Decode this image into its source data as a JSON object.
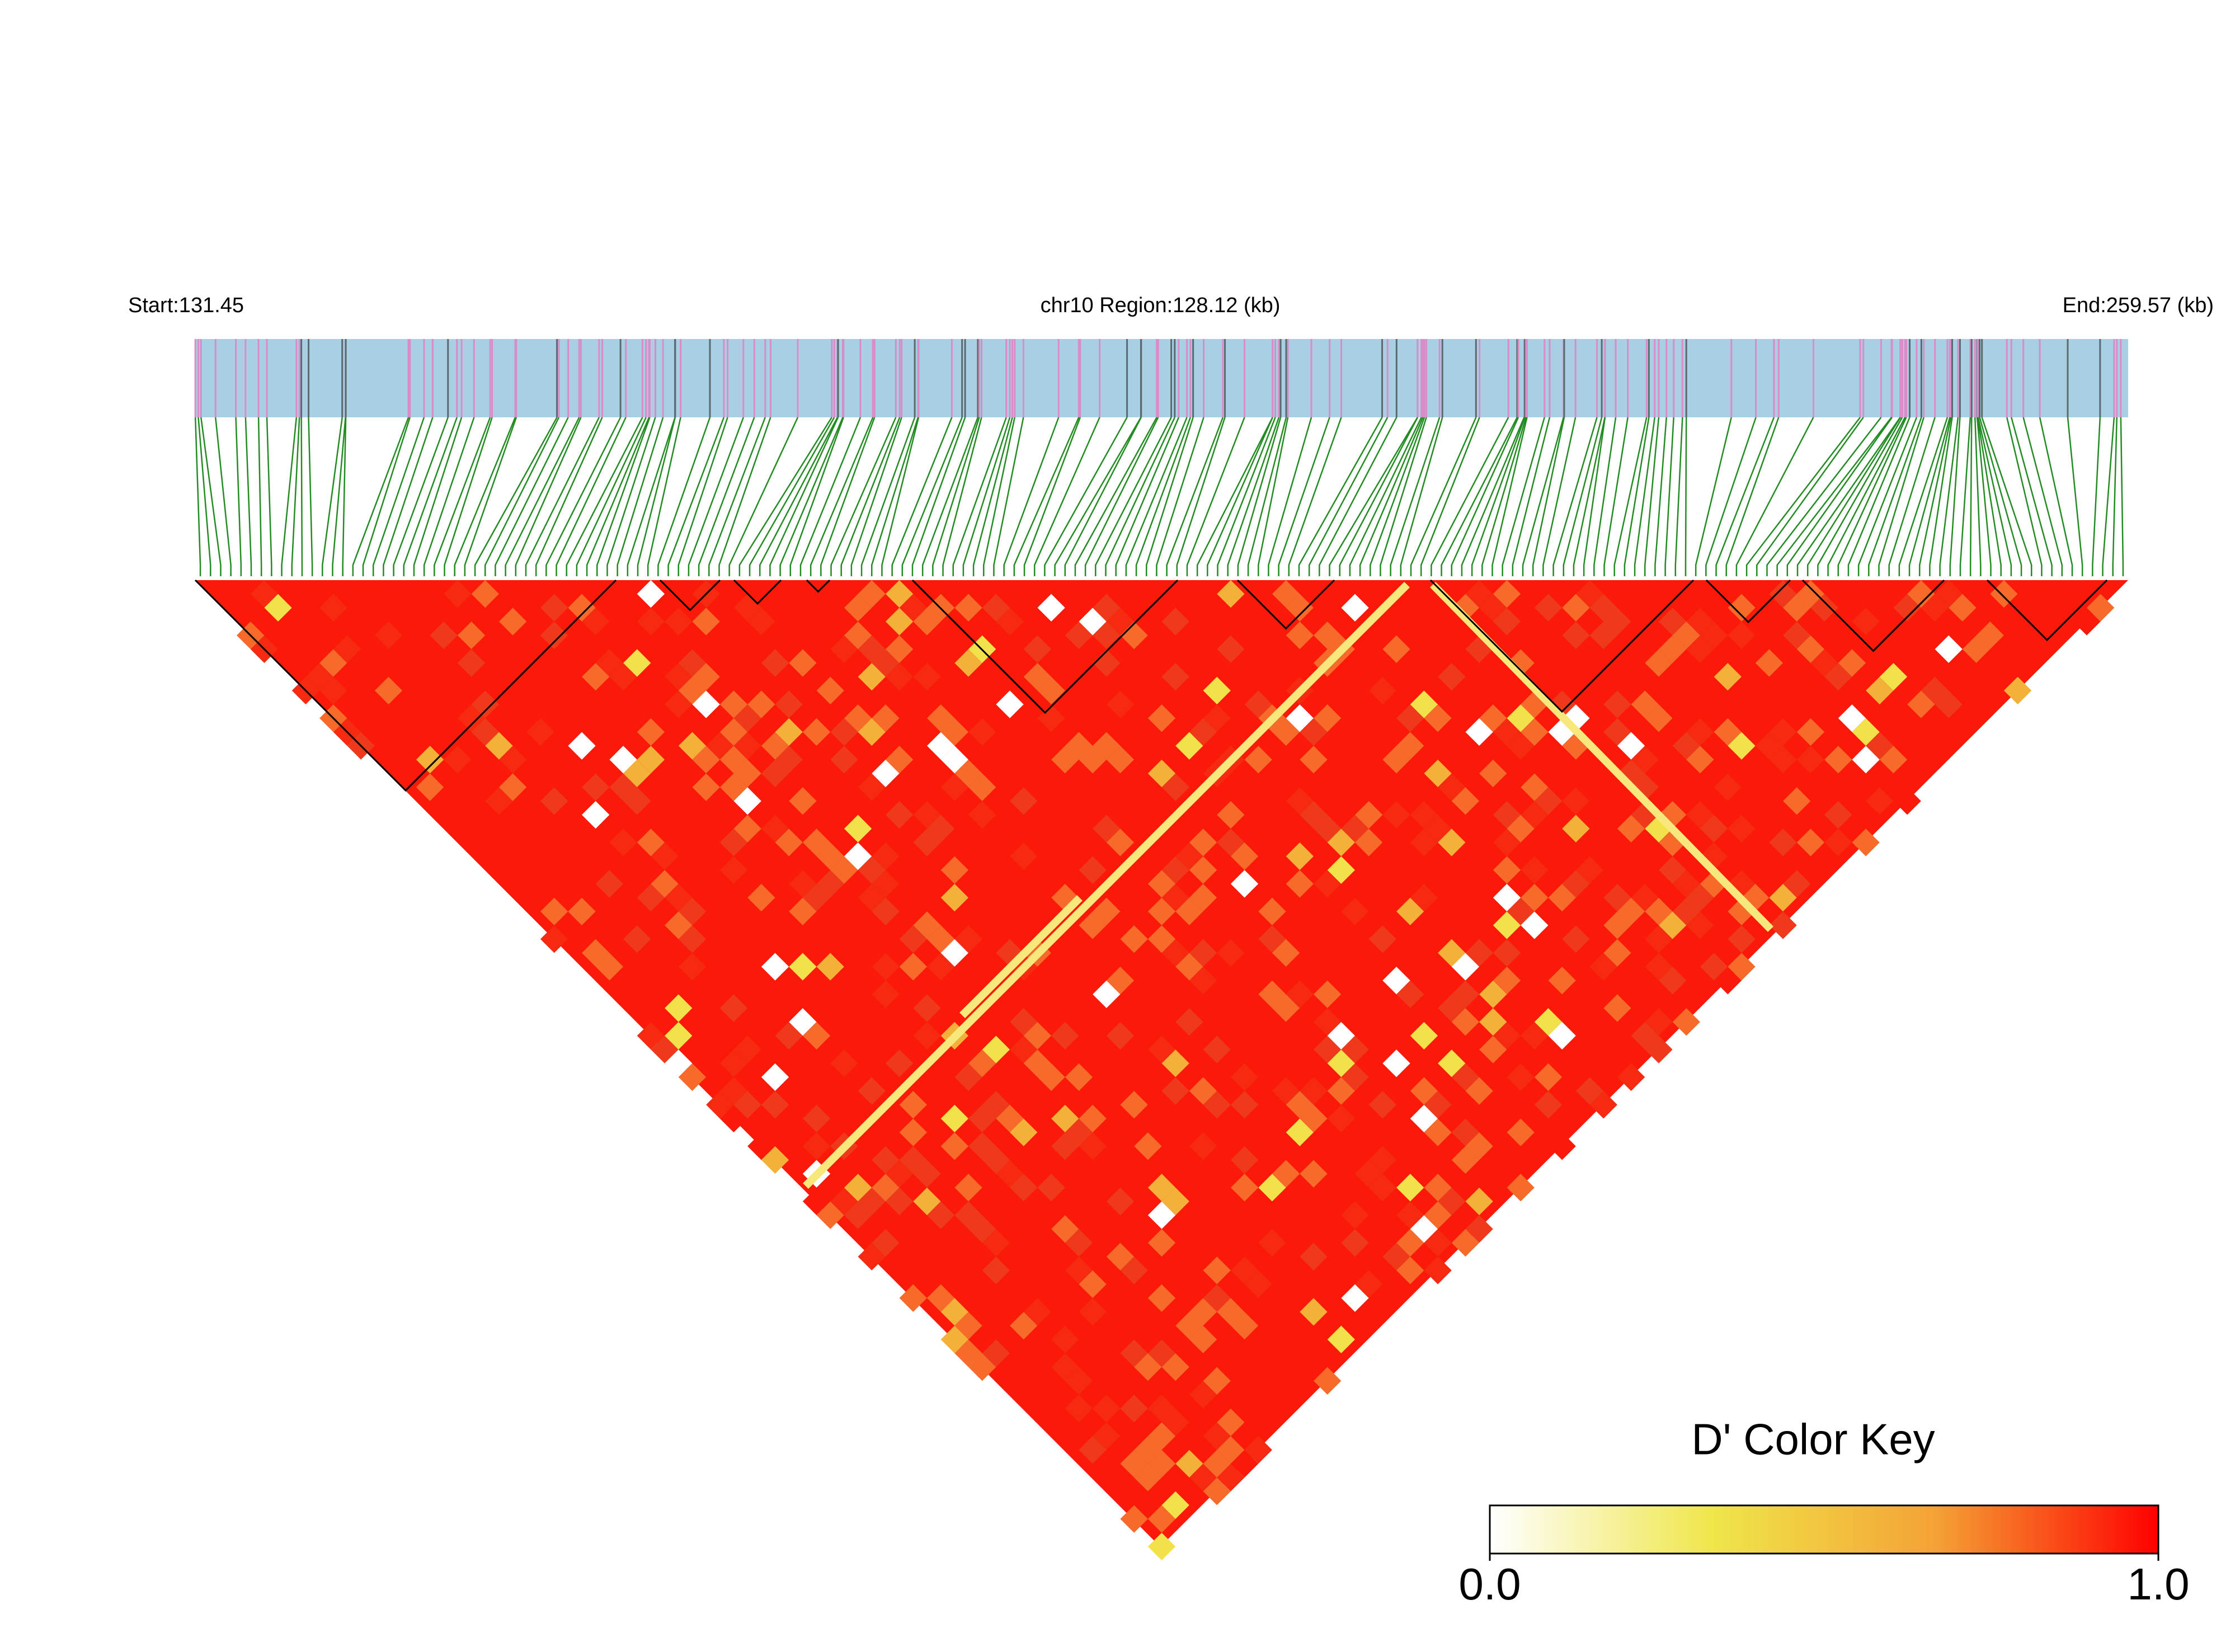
{
  "chart_data": {
    "type": "ld_heatmap",
    "start_label": "Start:131.45",
    "title": "chr10 Region:128.12 (kb)",
    "end_label": "End:259.57 (kb)",
    "color_key_title": "D' Color Key",
    "colorscale": [
      "#ffffff",
      "#efe64a",
      "#f4a235",
      "#ff0000"
    ],
    "color_key_lim": [
      0,
      1
    ],
    "color_key_ticks": [
      {
        "value": 0,
        "label": "0.0"
      },
      {
        "value": 1,
        "label": "1.0"
      }
    ]
  }
}
